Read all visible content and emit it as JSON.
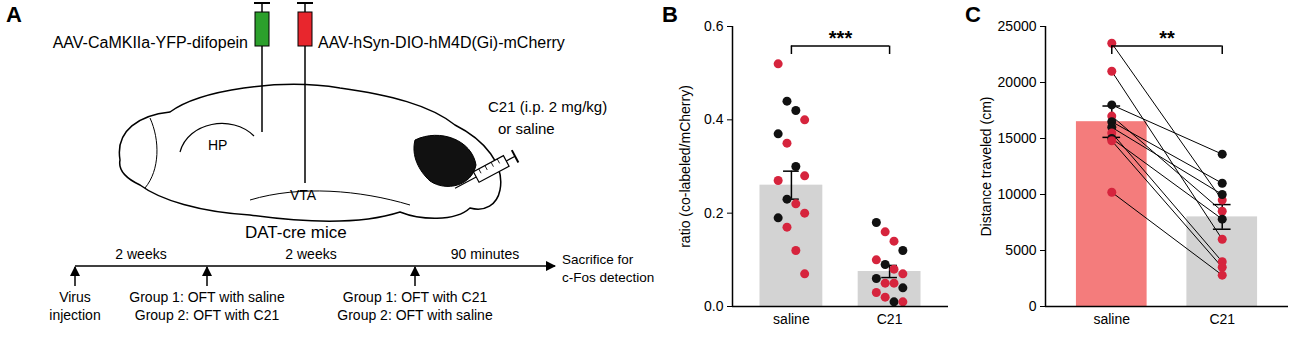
{
  "diagram": {
    "panel_label": "A",
    "injections": [
      "AAV-CaMKIIa-YFP-difopein",
      "AAV-hSyn-DIO-hM4D(Gi)-mCherry"
    ],
    "regions": [
      "HP",
      "VTA"
    ],
    "subject": "DAT-cre mice",
    "treatment": [
      "C21 (i.p. 2 mg/kg)",
      "or saline"
    ],
    "timeline": {
      "intervals": [
        "2 weeks",
        "2 weeks",
        "90 minutes"
      ],
      "events": [
        [
          "Virus",
          "injection"
        ],
        [
          "Group 1: OFT with saline",
          "Group 2: OFT with C21"
        ],
        [
          "Group 1: OFT with C21",
          "Group 2: OFT with saline"
        ],
        [
          "Sacrifice for",
          "c-Fos detection"
        ]
      ]
    }
  },
  "chart_data": [
    {
      "type": "bar",
      "panel_label": "B",
      "ylabel": "ratio (co-labeled/mCherry)",
      "categories": [
        "saline",
        "C21"
      ],
      "values": [
        0.26,
        0.075
      ],
      "errors": [
        0.03,
        0.013
      ],
      "colors": [
        "#d3d3d3",
        "#d3d3d3"
      ],
      "points": [
        [
          0.52,
          0.44,
          0.42,
          0.4,
          0.37,
          0.35,
          0.3,
          0.28,
          0.27,
          0.23,
          0.22,
          0.2,
          0.19,
          0.17,
          0.12,
          0.07
        ],
        [
          0.18,
          0.16,
          0.14,
          0.12,
          0.1,
          0.09,
          0.08,
          0.07,
          0.06,
          0.05,
          0.05,
          0.04,
          0.03,
          0.02,
          0.01,
          0.01
        ]
      ],
      "point_colors": [
        [
          "#d6243d",
          "#111111",
          "#111111",
          "#d6243d",
          "#111111",
          "#d6243d",
          "#111111",
          "#d6243d",
          "#d6243d",
          "#111111",
          "#d6243d",
          "#d6243d",
          "#111111",
          "#d6243d",
          "#d6243d",
          "#d6243d"
        ],
        [
          "#111111",
          "#d6243d",
          "#d6243d",
          "#111111",
          "#d6243d",
          "#111111",
          "#d6243d",
          "#d6243d",
          "#111111",
          "#d6243d",
          "#d6243d",
          "#111111",
          "#d6243d",
          "#d6243d",
          "#111111",
          "#d6243d"
        ]
      ],
      "annotation": "***",
      "ylim": [
        0,
        0.6
      ],
      "yticks": [
        {
          "value": 0,
          "label": "0.0"
        },
        0.2,
        0.4,
        0.6
      ]
    },
    {
      "type": "bar",
      "panel_label": "C",
      "ylabel": "Distance traveled (cm)",
      "categories": [
        "saline",
        "C21"
      ],
      "values": [
        16500,
        8000
      ],
      "errors": [
        1400,
        1100
      ],
      "colors": [
        "#f47c7c",
        "#d3d3d3"
      ],
      "points": [
        [
          23500,
          21000,
          18000,
          17000,
          16500,
          16000,
          15500,
          15000,
          14800,
          10200
        ],
        [
          9500,
          6000,
          13600,
          8500,
          11000,
          10000,
          4000,
          7800,
          3500,
          2800
        ]
      ],
      "point_colors": [
        [
          "#d6243d",
          "#d6243d",
          "#111111",
          "#d6243d",
          "#111111",
          "#111111",
          "#d6243d",
          "#111111",
          "#d6243d",
          "#d6243d"
        ],
        [
          "#d6243d",
          "#d6243d",
          "#111111",
          "#d6243d",
          "#111111",
          "#111111",
          "#d6243d",
          "#111111",
          "#d6243d",
          "#d6243d"
        ]
      ],
      "line_style": "solid",
      "annotation": "**",
      "ylim": [
        0,
        25000
      ],
      "yticks": [
        0,
        5000,
        10000,
        15000,
        20000,
        25000
      ]
    }
  ]
}
